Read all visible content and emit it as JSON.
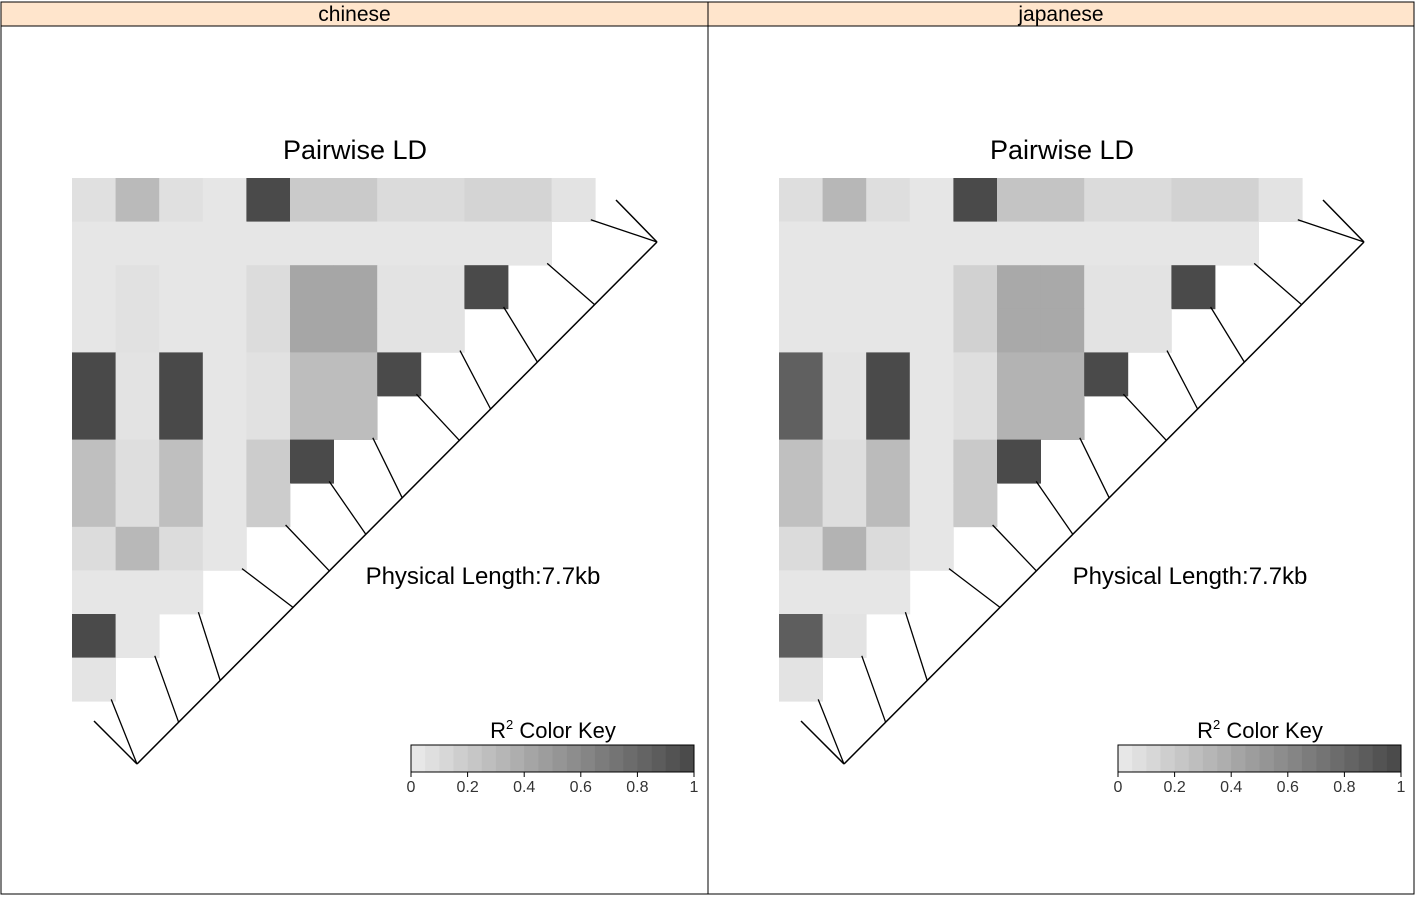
{
  "chart_data": [
    {
      "type": "heatmap",
      "panel_label": "chinese",
      "title": "Pairwise LD",
      "physical_length_label": "Physical Length:7.7kb",
      "color_key": {
        "title_main": "R",
        "title_sup": "2",
        "title_rest": " Color Key",
        "ticks": [
          "0",
          "0.2",
          "0.4",
          "0.6",
          "0.8",
          "1"
        ],
        "range": [
          0,
          1
        ],
        "low_color": "#ebebeb",
        "high_color": "#474747"
      },
      "marker_count": 12,
      "ld_r2": [
        [
          0.07,
          0.3,
          0.07,
          0.03,
          0.98,
          0.2,
          0.2,
          0.1,
          0.1,
          0.14,
          0.14,
          0.05
        ],
        [
          0.03,
          0.03,
          0.03,
          0.03,
          0.03,
          0.03,
          0.03,
          0.03,
          0.03,
          0.03,
          0.03
        ],
        [
          0.03,
          0.06,
          0.03,
          0.03,
          0.09,
          0.42,
          0.42,
          0.05,
          0.05,
          0.98
        ],
        [
          0.03,
          0.06,
          0.03,
          0.03,
          0.09,
          0.42,
          0.42,
          0.05,
          0.05
        ],
        [
          0.99,
          0.05,
          0.99,
          0.03,
          0.06,
          0.28,
          0.28,
          0.98
        ],
        [
          0.99,
          0.05,
          0.99,
          0.03,
          0.06,
          0.28,
          0.28
        ],
        [
          0.27,
          0.08,
          0.27,
          0.03,
          0.19,
          0.98
        ],
        [
          0.27,
          0.08,
          0.27,
          0.03,
          0.19
        ],
        [
          0.09,
          0.31,
          0.09,
          0.03
        ],
        [
          0.03,
          0.03,
          0.03
        ],
        [
          0.98,
          0.03
        ],
        [
          0.04
        ]
      ],
      "marker_relative_positions": [
        0.0,
        0.12,
        0.23,
        0.32,
        0.38,
        0.49,
        0.56,
        0.63,
        0.7,
        0.84,
        0.92,
        1.0
      ]
    },
    {
      "type": "heatmap",
      "panel_label": "japanese",
      "title": "Pairwise LD",
      "physical_length_label": "Physical Length:7.7kb",
      "color_key": {
        "title_main": "R",
        "title_sup": "2",
        "title_rest": " Color Key",
        "ticks": [
          "0",
          "0.2",
          "0.4",
          "0.6",
          "0.8",
          "1"
        ],
        "range": [
          0,
          1
        ],
        "low_color": "#ebebeb",
        "high_color": "#474747"
      },
      "marker_count": 12,
      "ld_r2": [
        [
          0.08,
          0.32,
          0.08,
          0.03,
          0.98,
          0.24,
          0.24,
          0.1,
          0.1,
          0.15,
          0.15,
          0.05
        ],
        [
          0.03,
          0.03,
          0.03,
          0.03,
          0.03,
          0.03,
          0.03,
          0.03,
          0.03,
          0.03,
          0.03
        ],
        [
          0.03,
          0.03,
          0.03,
          0.03,
          0.16,
          0.4,
          0.4,
          0.05,
          0.05,
          0.98
        ],
        [
          0.03,
          0.03,
          0.03,
          0.03,
          0.16,
          0.4,
          0.4,
          0.05,
          0.05
        ],
        [
          0.85,
          0.05,
          0.98,
          0.03,
          0.08,
          0.34,
          0.34,
          0.98
        ],
        [
          0.85,
          0.05,
          0.98,
          0.03,
          0.08,
          0.34,
          0.34
        ],
        [
          0.26,
          0.08,
          0.29,
          0.03,
          0.21,
          0.98
        ],
        [
          0.26,
          0.08,
          0.29,
          0.03,
          0.21
        ],
        [
          0.1,
          0.34,
          0.1,
          0.03
        ],
        [
          0.03,
          0.03,
          0.03
        ],
        [
          0.86,
          0.05
        ],
        [
          0.05
        ]
      ],
      "marker_relative_positions": [
        0.0,
        0.12,
        0.23,
        0.32,
        0.38,
        0.49,
        0.56,
        0.63,
        0.7,
        0.84,
        0.92,
        1.0
      ]
    }
  ]
}
